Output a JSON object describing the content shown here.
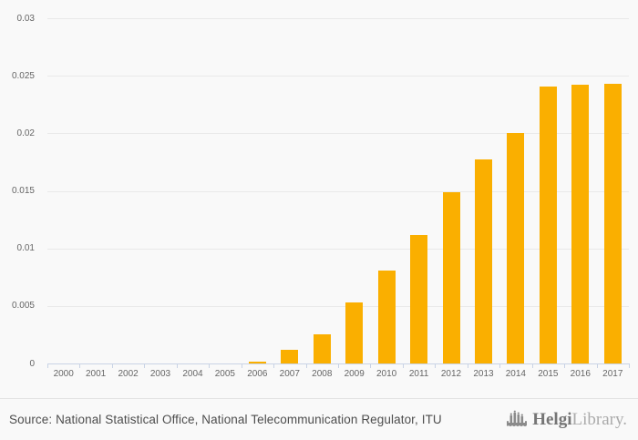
{
  "page": {
    "background": "#f9f9f9"
  },
  "chart_data": {
    "type": "bar",
    "title": "",
    "xlabel": "",
    "ylabel": "",
    "categories": [
      "2000",
      "2001",
      "2002",
      "2003",
      "2004",
      "2005",
      "2006",
      "2007",
      "2008",
      "2009",
      "2010",
      "2011",
      "2012",
      "2013",
      "2014",
      "2015",
      "2016",
      "2017"
    ],
    "values": [
      0,
      0,
      0,
      0,
      0,
      0,
      0.0002,
      0.0012,
      0.0025,
      0.0053,
      0.0081,
      0.0112,
      0.0149,
      0.0177,
      0.02,
      0.0241,
      0.0242,
      0.0243
    ],
    "ylim": [
      0,
      0.03
    ],
    "yticks": [
      0,
      0.005,
      0.01,
      0.015,
      0.02,
      0.025,
      0.03
    ],
    "ytick_labels": [
      "0",
      "0.005",
      "0.01",
      "0.015",
      "0.02",
      "0.025",
      "0.03"
    ],
    "grid": true,
    "legend": "none",
    "bar_color": "#faaf00",
    "grid_color": "#e9e9e9",
    "axis_color": "#c9d3e5",
    "label_color": "#666666"
  },
  "footer": {
    "source_text": "Source: National Statistical Office, National Telecommunication Regulator, ITU",
    "logo": {
      "brand": "Helgi",
      "brand_suffix": "Library.",
      "icon": "bridge-chart-icon"
    }
  }
}
